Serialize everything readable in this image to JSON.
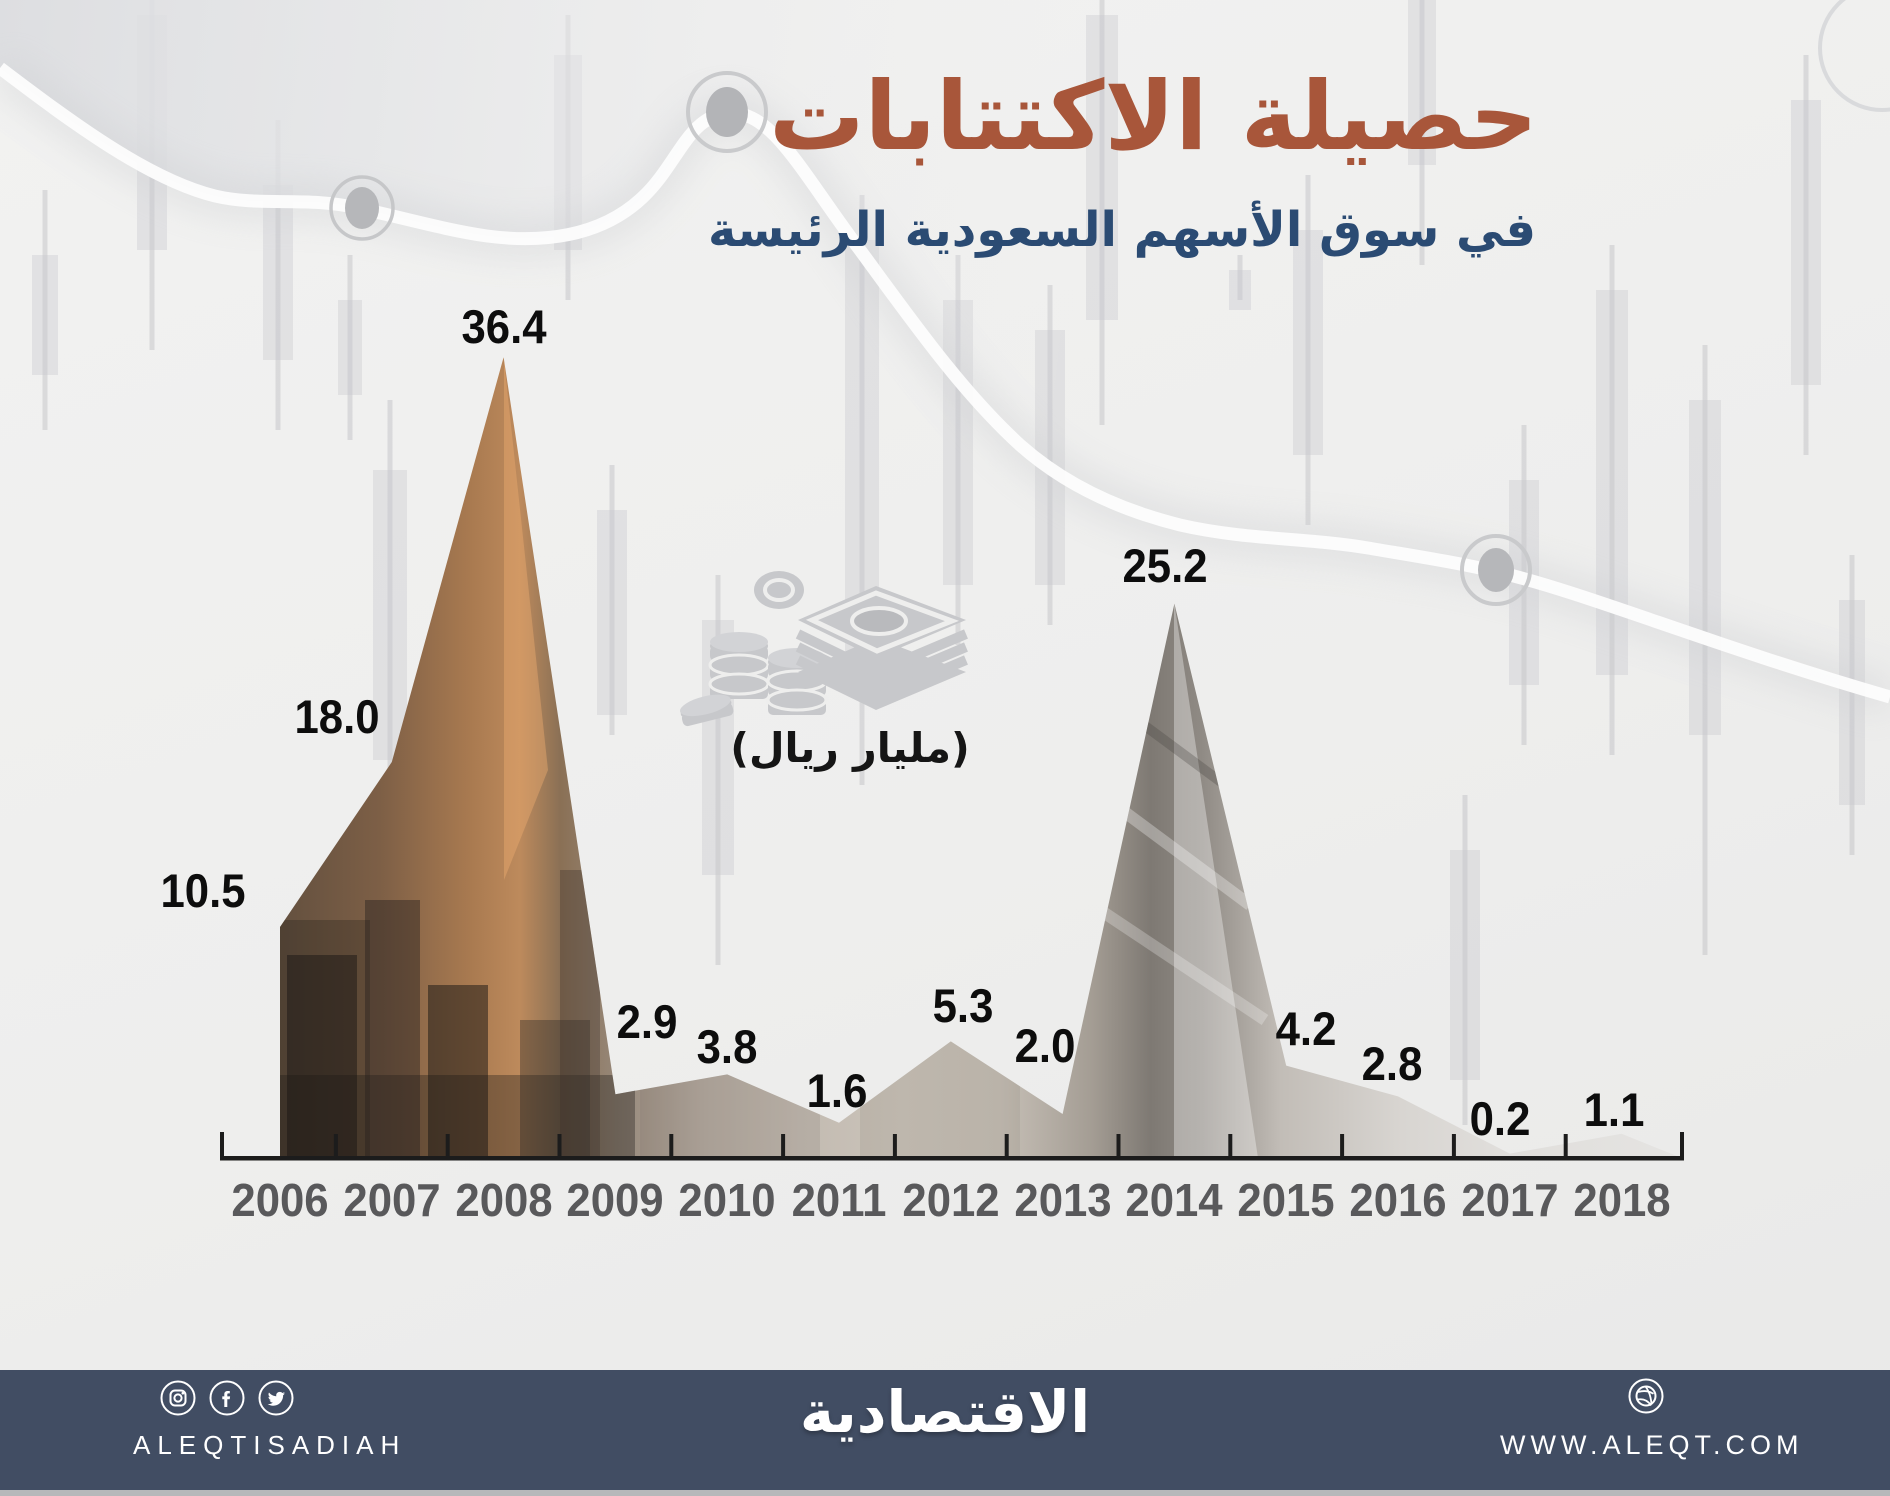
{
  "header": {
    "title": "حصيلة الاكتتابات",
    "subtitle": "في سوق الأسهم السعودية الرئيسة",
    "title_color": "#a8563a",
    "subtitle_color": "#2b4b73"
  },
  "unit_label": "(مليار ريال)",
  "chart_data": {
    "type": "area",
    "title": "حصيلة الاكتتابات في سوق الأسهم السعودية الرئيسة",
    "unit": "مليار ريال",
    "categories": [
      "2006",
      "2007",
      "2008",
      "2009",
      "2010",
      "2011",
      "2012",
      "2013",
      "2014",
      "2015",
      "2016",
      "2017",
      "2018"
    ],
    "values": [
      10.5,
      18.0,
      36.4,
      2.9,
      3.8,
      1.6,
      5.3,
      2.0,
      25.2,
      4.2,
      2.8,
      0.2,
      1.1
    ],
    "value_labels": [
      "10.5",
      "18.0",
      "36.4",
      "2.9",
      "3.8",
      "1.6",
      "5.3",
      "2.0",
      "25.2",
      "4.2",
      "2.8",
      "0.2",
      "1.1"
    ],
    "ylim": [
      0,
      40
    ],
    "xlabel": "",
    "ylabel": "",
    "grid": false,
    "legend": "none",
    "fill": "photo-collage"
  },
  "footer": {
    "bg_color": "#414d63",
    "social_handle": "ALEQTISADIAH",
    "brand": "الاقتصادية",
    "website": "WWW.ALEQT.COM",
    "icons": [
      "instagram-icon",
      "facebook-icon",
      "twitter-icon",
      "dribbble-icon"
    ]
  }
}
